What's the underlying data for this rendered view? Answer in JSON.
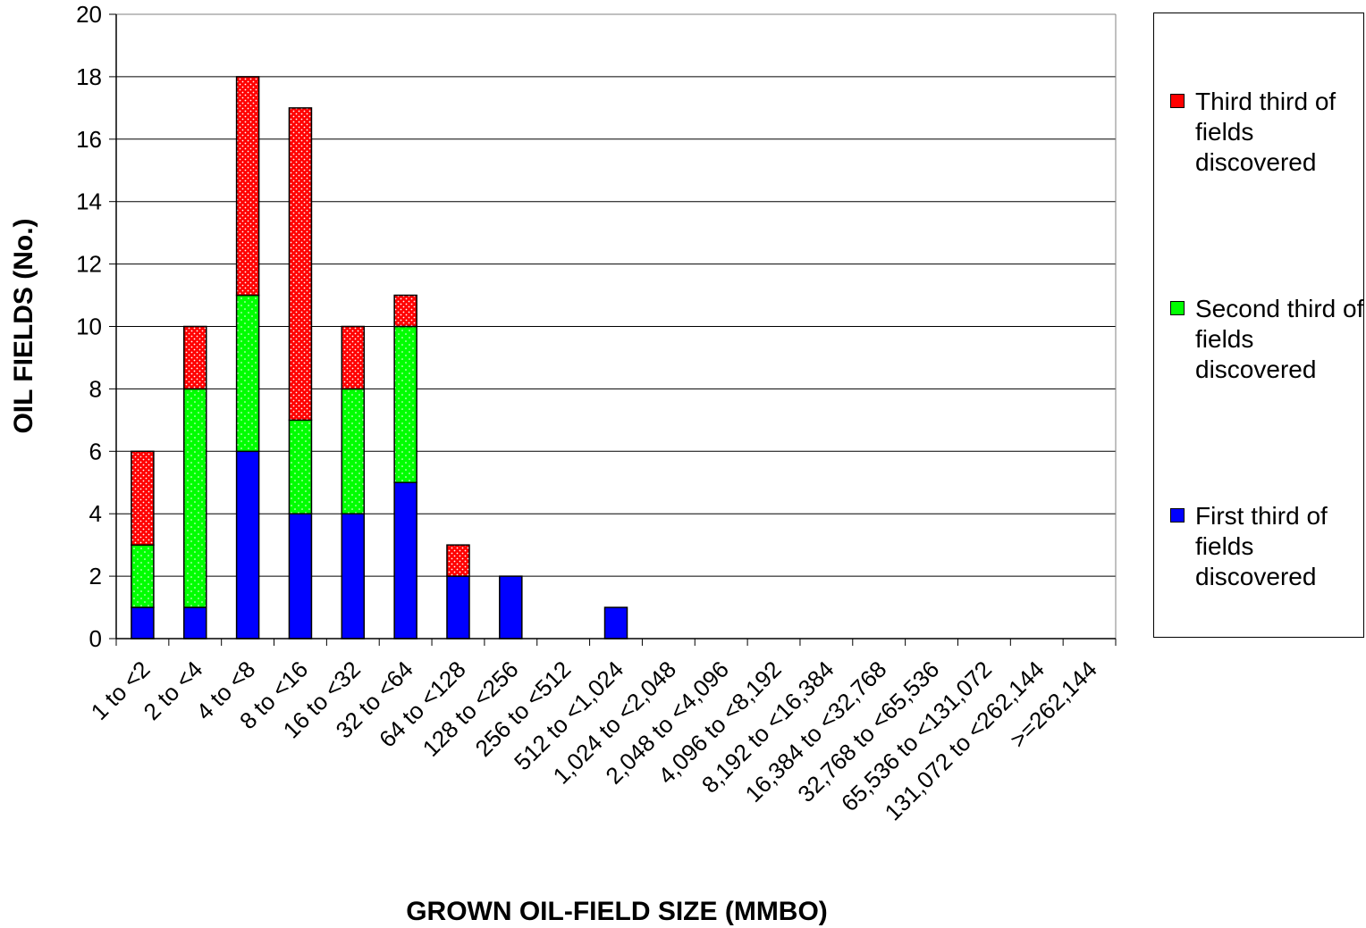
{
  "chart_data": {
    "type": "bar",
    "stacked": true,
    "xlabel": "GROWN OIL-FIELD SIZE (MMBO)",
    "ylabel": "OIL FIELDS (No.)",
    "ylim": [
      0,
      20
    ],
    "yticks": [
      0,
      2,
      4,
      6,
      8,
      10,
      12,
      14,
      16,
      18,
      20
    ],
    "grid": "horizontal",
    "legend_position": "right",
    "categories": [
      "1 to <2",
      "2 to <4",
      "4 to <8",
      "8 to <16",
      "16 to <32",
      "32 to <64",
      "64 to <128",
      "128 to <256",
      "256 to <512",
      "512 to <1,024",
      "1,024 to <2,048",
      "2,048 to <4,096",
      "4,096 to <8,192",
      "8,192 to <16,384",
      "16,384 to <32,768",
      "32,768 to <65,536",
      "65,536 to <131,072",
      "131,072 to <262,144",
      ">=262,144"
    ],
    "series": [
      {
        "name": "First third of fields discovered",
        "color": "#0000ff",
        "pattern": "solid",
        "values": [
          1,
          1,
          6,
          4,
          4,
          5,
          2,
          2,
          0,
          1,
          0,
          0,
          0,
          0,
          0,
          0,
          0,
          0,
          0
        ]
      },
      {
        "name": "Second third of fields discovered",
        "color": "#00ff00",
        "pattern": "dotted",
        "values": [
          2,
          7,
          5,
          3,
          4,
          5,
          0,
          0,
          0,
          0,
          0,
          0,
          0,
          0,
          0,
          0,
          0,
          0,
          0
        ]
      },
      {
        "name": "Third third of fields discovered",
        "color": "#ff0000",
        "pattern": "dotted",
        "values": [
          3,
          2,
          7,
          10,
          2,
          1,
          1,
          0,
          0,
          0,
          0,
          0,
          0,
          0,
          0,
          0,
          0,
          0,
          0
        ]
      }
    ]
  },
  "legend": {
    "items": [
      {
        "label": "Third third of fields discovered",
        "color": "#ff0000"
      },
      {
        "label": "Second third of fields discovered",
        "color": "#00ff00"
      },
      {
        "label": "First third of fields discovered",
        "color": "#0000ff"
      }
    ]
  }
}
